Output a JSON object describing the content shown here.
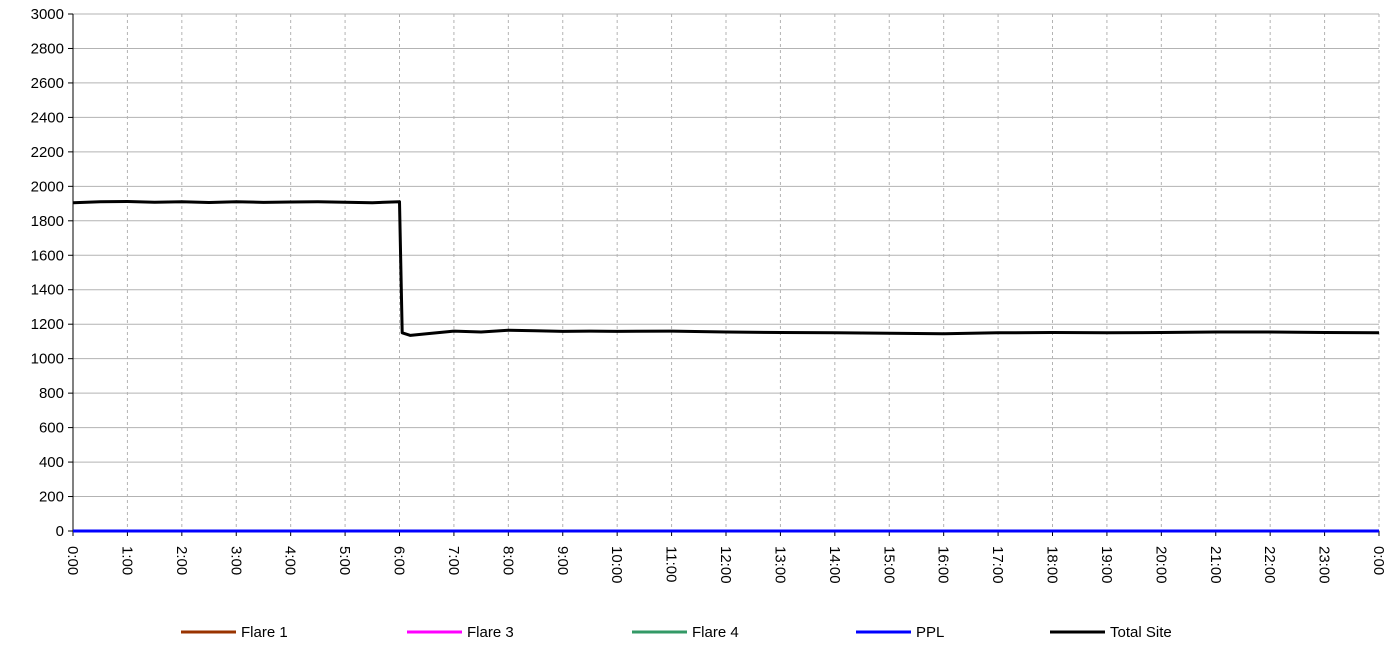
{
  "chart_data": {
    "type": "line",
    "title": "",
    "xlabel": "",
    "ylabel": "",
    "ylim": [
      0,
      3000
    ],
    "yticks": [
      "0",
      "200",
      "400",
      "600",
      "800",
      "1000",
      "1200",
      "1400",
      "1600",
      "1800",
      "2000",
      "2200",
      "2400",
      "2600",
      "2800",
      "3000"
    ],
    "xticks": [
      "0:00",
      "1:00",
      "2:00",
      "3:00",
      "4:00",
      "5:00",
      "6:00",
      "7:00",
      "8:00",
      "9:00",
      "10:00",
      "11:00",
      "12:00",
      "13:00",
      "14:00",
      "15:00",
      "16:00",
      "17:00",
      "18:00",
      "19:00",
      "20:00",
      "21:00",
      "22:00",
      "23:00",
      "0:00"
    ],
    "xlim_hours": [
      0,
      24
    ],
    "grid": {
      "horizontal": "solid",
      "vertical": "dashed"
    },
    "legend_position": "bottom",
    "series": [
      {
        "name": "Flare 1",
        "color": "#993300",
        "x": [
          0,
          24
        ],
        "y": [
          0,
          0
        ]
      },
      {
        "name": "Flare 3",
        "color": "#ff00ff",
        "x": [
          0,
          24
        ],
        "y": [
          0,
          0
        ]
      },
      {
        "name": "Flare 4",
        "color": "#339966",
        "x": [
          0,
          24
        ],
        "y": [
          0,
          0
        ]
      },
      {
        "name": "PPL",
        "color": "#0000ff",
        "x": [
          0,
          24
        ],
        "y": [
          0,
          0
        ]
      },
      {
        "name": "Total Site",
        "color": "#000000",
        "x": [
          0,
          0.5,
          1,
          1.5,
          2,
          2.5,
          3,
          3.5,
          4,
          4.5,
          5,
          5.5,
          6,
          6.02,
          6.05,
          6.2,
          6.5,
          7,
          7.5,
          8,
          8.5,
          9,
          9.5,
          10,
          11,
          12,
          13,
          14,
          15,
          16,
          17,
          18,
          19,
          20,
          21,
          22,
          23,
          24
        ],
        "y": [
          1905,
          1910,
          1912,
          1908,
          1910,
          1906,
          1911,
          1907,
          1909,
          1910,
          1908,
          1905,
          1910,
          1600,
          1150,
          1135,
          1145,
          1160,
          1155,
          1165,
          1162,
          1158,
          1160,
          1158,
          1160,
          1155,
          1152,
          1150,
          1148,
          1145,
          1150,
          1152,
          1150,
          1152,
          1155,
          1155,
          1152,
          1150
        ]
      }
    ]
  }
}
